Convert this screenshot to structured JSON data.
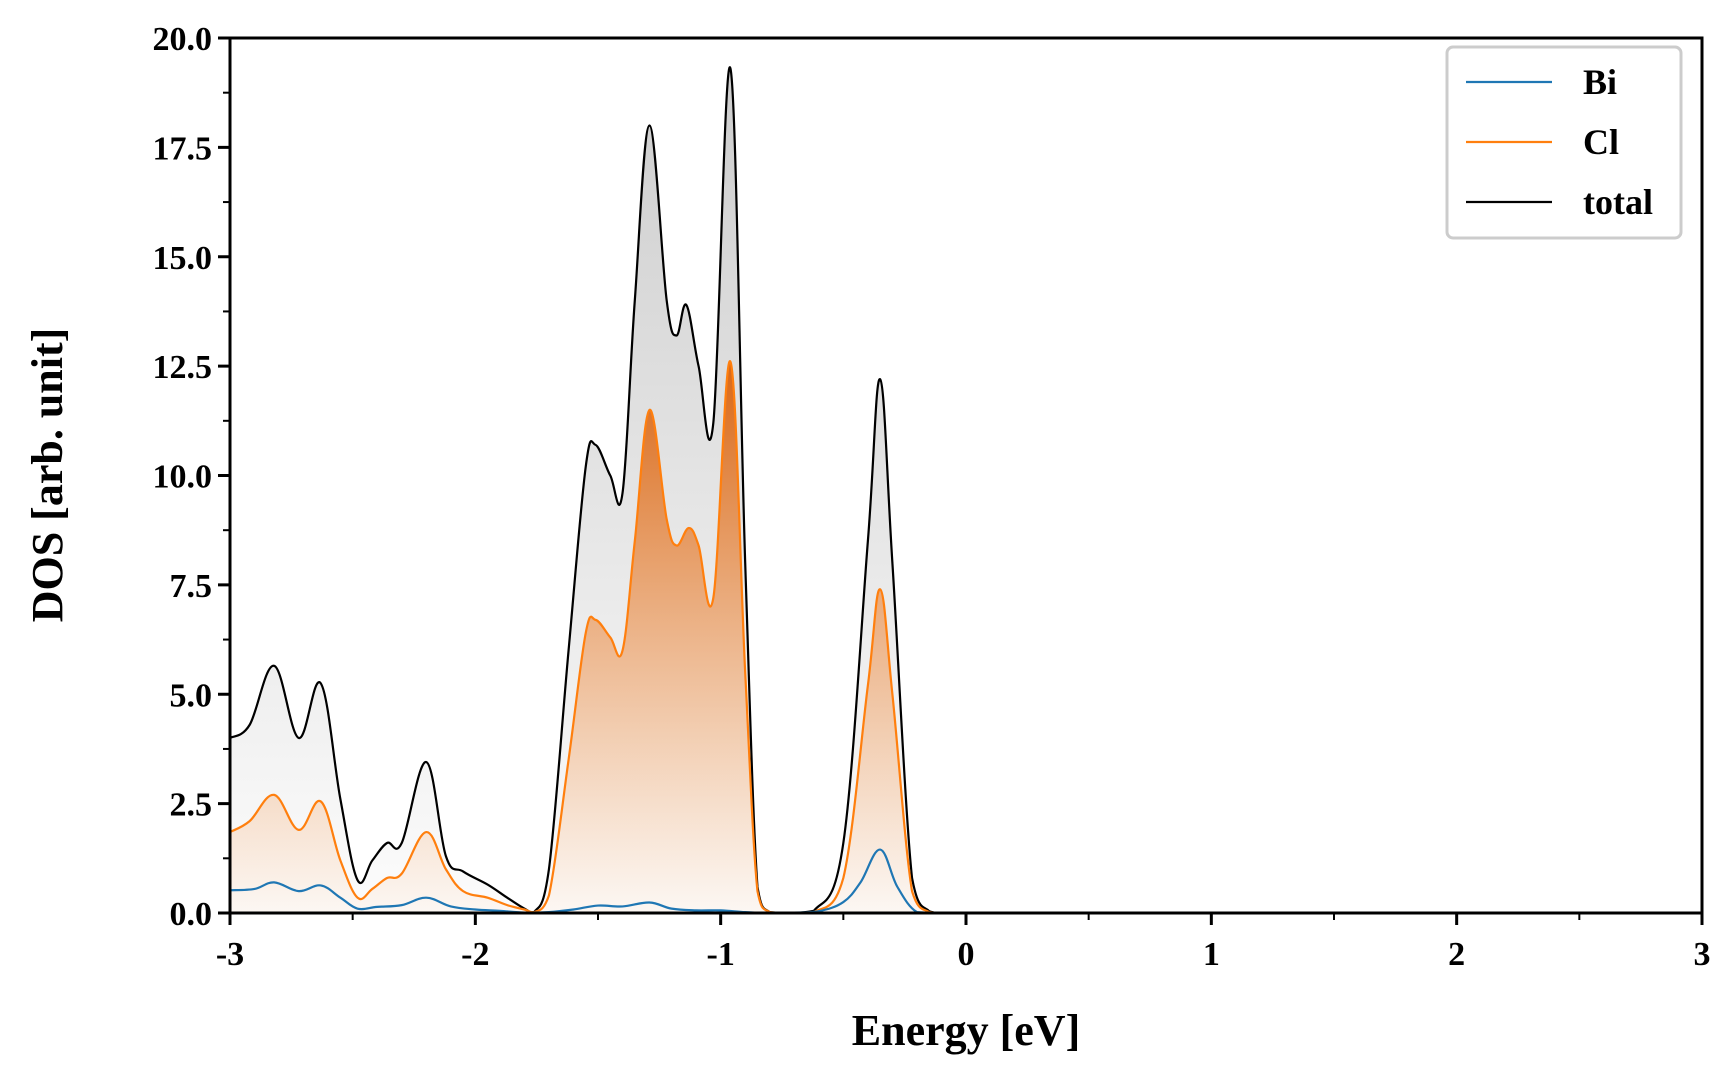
{
  "chart_data": {
    "type": "line",
    "xlabel": "Energy [eV]",
    "ylabel": "DOS [arb. unit]",
    "xlim": [
      -3,
      3
    ],
    "ylim": [
      0,
      20
    ],
    "x_ticks": [
      -3,
      -2,
      -1,
      0,
      1,
      2,
      3
    ],
    "x_tick_labels": [
      "-3",
      "-2",
      "-1",
      "0",
      "1",
      "2",
      "3"
    ],
    "y_ticks": [
      0,
      2.5,
      5,
      7.5,
      10,
      12.5,
      15,
      17.5,
      20
    ],
    "y_tick_labels": [
      "0.0",
      "2.5",
      "5.0",
      "7.5",
      "10.0",
      "12.5",
      "15.0",
      "17.5",
      "20.0"
    ],
    "grid": false,
    "legend_position": "top-right",
    "series": [
      {
        "name": "Bi",
        "color": "#1f77b4",
        "x": [
          -3.0,
          -2.9,
          -2.82,
          -2.72,
          -2.63,
          -2.55,
          -2.48,
          -2.4,
          -2.3,
          -2.2,
          -2.1,
          -2.0,
          -1.9,
          -1.8,
          -1.7,
          -1.6,
          -1.5,
          -1.4,
          -1.29,
          -1.2,
          -1.1,
          -1.0,
          -0.9,
          -0.8,
          -0.7,
          -0.6,
          -0.5,
          -0.43,
          -0.35,
          -0.28,
          -0.2,
          -0.1,
          0.0,
          1.0,
          2.0,
          2.97,
          3.0
        ],
        "values": [
          0.52,
          0.55,
          0.7,
          0.5,
          0.63,
          0.35,
          0.1,
          0.14,
          0.18,
          0.35,
          0.15,
          0.08,
          0.05,
          0.01,
          0.02,
          0.08,
          0.17,
          0.15,
          0.24,
          0.1,
          0.06,
          0.06,
          0.02,
          0.0,
          0.01,
          0.04,
          0.25,
          0.7,
          1.45,
          0.6,
          0.02,
          0.0,
          0.0,
          0.0,
          0.0,
          0.0,
          0.02
        ]
      },
      {
        "name": "Cl",
        "color": "#ff7f0e",
        "x": [
          -3.0,
          -2.92,
          -2.82,
          -2.72,
          -2.63,
          -2.55,
          -2.48,
          -2.42,
          -2.36,
          -2.3,
          -2.2,
          -2.12,
          -2.05,
          -1.95,
          -1.87,
          -1.8,
          -1.76,
          -1.7,
          -1.62,
          -1.55,
          -1.51,
          -1.45,
          -1.4,
          -1.35,
          -1.29,
          -1.22,
          -1.18,
          -1.13,
          -1.09,
          -1.03,
          -0.96,
          -0.9,
          -0.85,
          -0.8,
          -0.72,
          -0.62,
          -0.5,
          -0.4,
          -0.35,
          -0.3,
          -0.22,
          -0.15,
          -0.1,
          0.0,
          1.0,
          2.0,
          2.97,
          3.0
        ],
        "values": [
          1.85,
          2.1,
          2.7,
          1.9,
          2.55,
          1.2,
          0.35,
          0.55,
          0.8,
          0.9,
          1.85,
          1.0,
          0.5,
          0.35,
          0.18,
          0.08,
          0.02,
          0.4,
          3.5,
          6.4,
          6.7,
          6.3,
          6.0,
          8.5,
          11.5,
          9.0,
          8.4,
          8.8,
          8.4,
          7.2,
          12.6,
          5.5,
          0.5,
          0.02,
          0.0,
          0.02,
          0.8,
          5.2,
          7.4,
          5.0,
          0.5,
          0.02,
          0.0,
          0.0,
          0.0,
          0.0,
          0.0,
          0.05
        ]
      },
      {
        "name": "total",
        "color": "#000000",
        "x": [
          -3.0,
          -2.92,
          -2.82,
          -2.72,
          -2.63,
          -2.55,
          -2.48,
          -2.42,
          -2.36,
          -2.3,
          -2.2,
          -2.12,
          -2.05,
          -1.95,
          -1.87,
          -1.8,
          -1.76,
          -1.7,
          -1.62,
          -1.55,
          -1.51,
          -1.45,
          -1.4,
          -1.35,
          -1.29,
          -1.22,
          -1.18,
          -1.14,
          -1.09,
          -1.03,
          -0.96,
          -0.9,
          -0.85,
          -0.8,
          -0.72,
          -0.62,
          -0.5,
          -0.4,
          -0.35,
          -0.3,
          -0.22,
          -0.15,
          -0.1,
          0.0,
          1.0,
          2.0,
          2.97,
          3.0
        ],
        "values": [
          4.0,
          4.3,
          5.65,
          4.0,
          5.25,
          2.6,
          0.75,
          1.2,
          1.6,
          1.6,
          3.45,
          1.3,
          0.95,
          0.65,
          0.35,
          0.1,
          0.02,
          1.0,
          6.0,
          10.2,
          10.7,
          10.0,
          9.6,
          14.0,
          18.0,
          14.0,
          13.2,
          13.9,
          12.5,
          11.2,
          19.3,
          8.0,
          0.6,
          0.02,
          0.0,
          0.05,
          1.6,
          8.5,
          12.2,
          8.0,
          0.8,
          0.04,
          0.0,
          0.0,
          0.0,
          0.0,
          0.0,
          0.08
        ]
      }
    ]
  }
}
